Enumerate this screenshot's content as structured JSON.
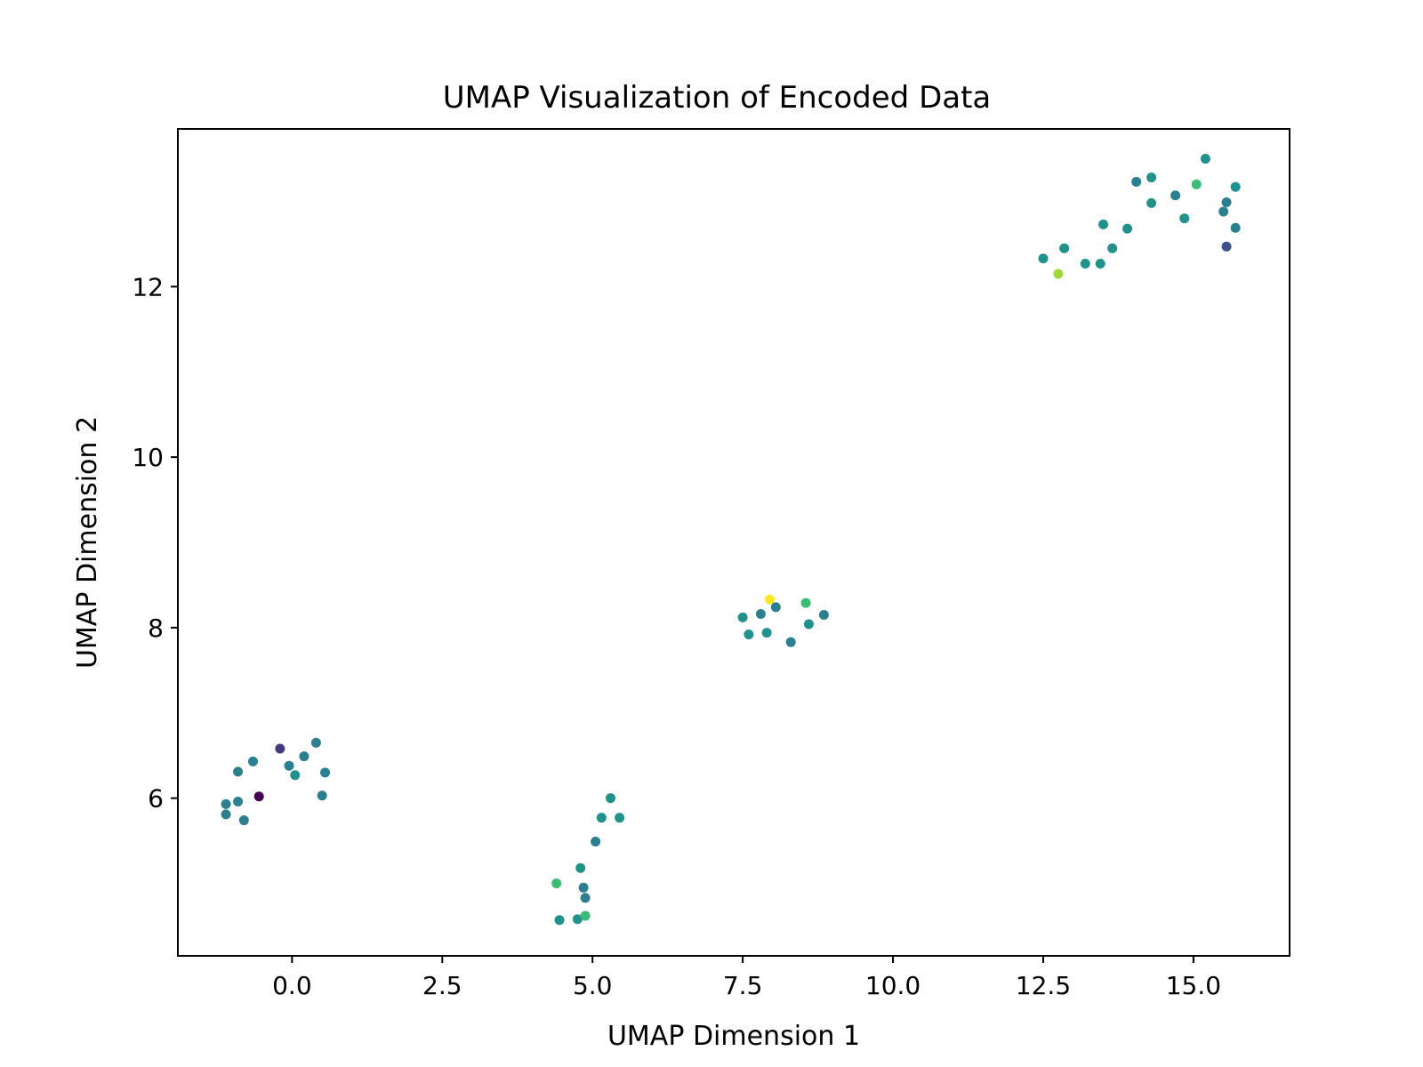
{
  "chart_data": {
    "type": "scatter",
    "title": "UMAP Visualization of Encoded Data",
    "xlabel": "UMAP Dimension 1",
    "ylabel": "UMAP Dimension 2",
    "xlim": [
      -1.9,
      16.6
    ],
    "ylim": [
      4.15,
      13.85
    ],
    "xticks": [
      0.0,
      2.5,
      5.0,
      7.5,
      10.0,
      12.5,
      15.0
    ],
    "xtick_labels": [
      "0.0",
      "2.5",
      "5.0",
      "7.5",
      "10.0",
      "12.5",
      "15.0"
    ],
    "yticks": [
      6,
      8,
      10,
      12
    ],
    "ytick_labels": [
      "6",
      "8",
      "10",
      "12"
    ],
    "grid": false,
    "legend": "none",
    "colormap": "viridis",
    "points": [
      {
        "x": -1.1,
        "y": 5.93,
        "color": "#2c7f8e"
      },
      {
        "x": -1.1,
        "y": 5.81,
        "color": "#2c7f8e"
      },
      {
        "x": -0.9,
        "y": 5.96,
        "color": "#2c7f8e"
      },
      {
        "x": -0.9,
        "y": 6.31,
        "color": "#2c7f8e"
      },
      {
        "x": -0.8,
        "y": 5.74,
        "color": "#2c7f8e"
      },
      {
        "x": -0.65,
        "y": 6.43,
        "color": "#2c7f8e"
      },
      {
        "x": -0.55,
        "y": 6.02,
        "color": "#440154"
      },
      {
        "x": -0.2,
        "y": 6.58,
        "color": "#443983"
      },
      {
        "x": -0.05,
        "y": 6.38,
        "color": "#2c7f8e"
      },
      {
        "x": 0.05,
        "y": 6.27,
        "color": "#21918c"
      },
      {
        "x": 0.2,
        "y": 6.49,
        "color": "#2c7f8e"
      },
      {
        "x": 0.4,
        "y": 6.65,
        "color": "#2c7f8e"
      },
      {
        "x": 0.5,
        "y": 6.03,
        "color": "#2c7f8e"
      },
      {
        "x": 0.55,
        "y": 6.3,
        "color": "#2c7f8e"
      },
      {
        "x": 4.4,
        "y": 5.0,
        "color": "#3dbc74"
      },
      {
        "x": 4.45,
        "y": 4.57,
        "color": "#21918c"
      },
      {
        "x": 4.75,
        "y": 4.58,
        "color": "#21918c"
      },
      {
        "x": 4.8,
        "y": 5.18,
        "color": "#21918c"
      },
      {
        "x": 4.85,
        "y": 4.95,
        "color": "#2c7f8e"
      },
      {
        "x": 4.88,
        "y": 4.83,
        "color": "#2c7f8e"
      },
      {
        "x": 4.88,
        "y": 4.62,
        "color": "#3dbc74"
      },
      {
        "x": 5.05,
        "y": 5.49,
        "color": "#2c7f8e"
      },
      {
        "x": 5.15,
        "y": 5.77,
        "color": "#21918c"
      },
      {
        "x": 5.3,
        "y": 6.0,
        "color": "#21918c"
      },
      {
        "x": 5.45,
        "y": 5.77,
        "color": "#21918c"
      },
      {
        "x": 7.5,
        "y": 8.12,
        "color": "#21918c"
      },
      {
        "x": 7.6,
        "y": 7.92,
        "color": "#21918c"
      },
      {
        "x": 7.8,
        "y": 8.16,
        "color": "#2c7f8e"
      },
      {
        "x": 7.9,
        "y": 7.94,
        "color": "#21918c"
      },
      {
        "x": 7.95,
        "y": 8.33,
        "color": "#fde725"
      },
      {
        "x": 8.05,
        "y": 8.24,
        "color": "#2c7f8e"
      },
      {
        "x": 8.3,
        "y": 7.83,
        "color": "#2c7f8e"
      },
      {
        "x": 8.55,
        "y": 8.29,
        "color": "#3dbc74"
      },
      {
        "x": 8.6,
        "y": 8.04,
        "color": "#21918c"
      },
      {
        "x": 8.85,
        "y": 8.15,
        "color": "#2c7f8e"
      },
      {
        "x": 12.5,
        "y": 12.33,
        "color": "#21918c"
      },
      {
        "x": 12.75,
        "y": 12.15,
        "color": "#a0da39"
      },
      {
        "x": 12.85,
        "y": 12.45,
        "color": "#21918c"
      },
      {
        "x": 13.2,
        "y": 12.27,
        "color": "#21918c"
      },
      {
        "x": 13.45,
        "y": 12.27,
        "color": "#21918c"
      },
      {
        "x": 13.5,
        "y": 12.73,
        "color": "#21918c"
      },
      {
        "x": 13.65,
        "y": 12.45,
        "color": "#21918c"
      },
      {
        "x": 13.9,
        "y": 12.68,
        "color": "#21918c"
      },
      {
        "x": 14.05,
        "y": 13.23,
        "color": "#2c7f8e"
      },
      {
        "x": 14.3,
        "y": 12.98,
        "color": "#21918c"
      },
      {
        "x": 14.3,
        "y": 13.28,
        "color": "#21918c"
      },
      {
        "x": 14.7,
        "y": 13.07,
        "color": "#2c7f8e"
      },
      {
        "x": 14.85,
        "y": 12.8,
        "color": "#21918c"
      },
      {
        "x": 15.05,
        "y": 13.2,
        "color": "#3dbc74"
      },
      {
        "x": 15.2,
        "y": 13.5,
        "color": "#21918c"
      },
      {
        "x": 15.5,
        "y": 12.88,
        "color": "#2c7f8e"
      },
      {
        "x": 15.55,
        "y": 12.99,
        "color": "#2c7f8e"
      },
      {
        "x": 15.55,
        "y": 12.47,
        "color": "#3b528b"
      },
      {
        "x": 15.7,
        "y": 13.17,
        "color": "#21918c"
      },
      {
        "x": 15.7,
        "y": 12.69,
        "color": "#2c7f8e"
      }
    ]
  }
}
